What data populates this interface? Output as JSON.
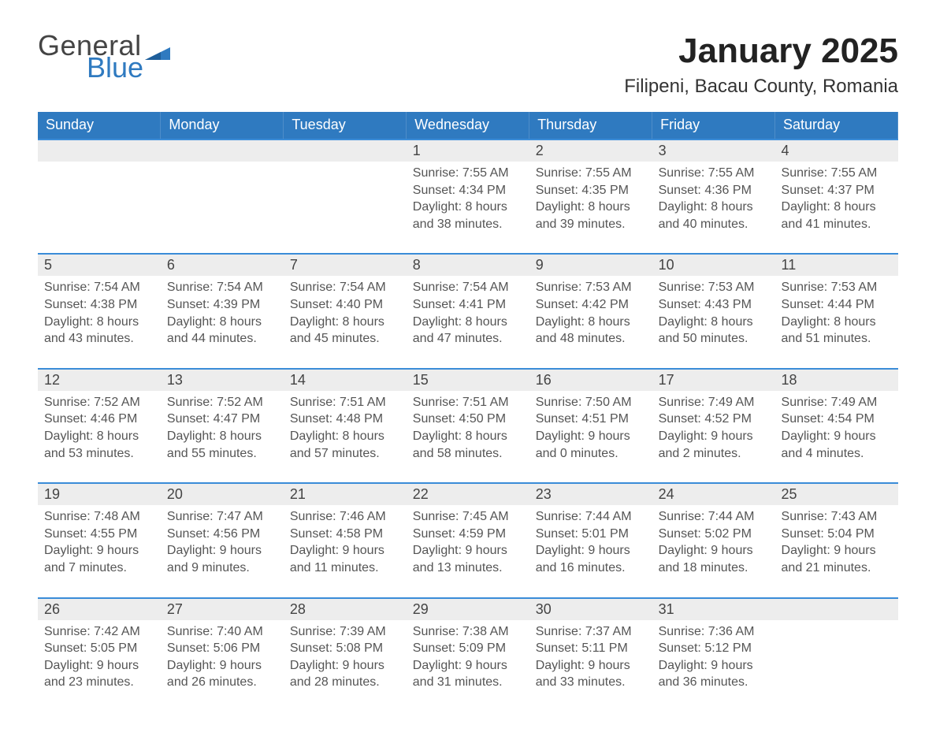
{
  "logo": {
    "word1": "General",
    "word2": "Blue"
  },
  "title": "January 2025",
  "subtitle": "Filipeni, Bacau County, Romania",
  "day_headers": [
    "Sunday",
    "Monday",
    "Tuesday",
    "Wednesday",
    "Thursday",
    "Friday",
    "Saturday"
  ],
  "colors": {
    "header_bg": "#2f7ac0",
    "row_divider": "#3a8cd8",
    "daynum_bg": "#ededed",
    "page_bg": "#ffffff",
    "text": "#3a3a3a"
  },
  "fonts": {
    "title_size_pt": 33,
    "subtitle_size_pt": 18,
    "header_size_pt": 14,
    "body_size_pt": 12
  },
  "weeks": [
    [
      null,
      null,
      null,
      {
        "num": "1",
        "sunrise": "7:55 AM",
        "sunset": "4:34 PM",
        "daylight_h": "8",
        "daylight_m": "38"
      },
      {
        "num": "2",
        "sunrise": "7:55 AM",
        "sunset": "4:35 PM",
        "daylight_h": "8",
        "daylight_m": "39"
      },
      {
        "num": "3",
        "sunrise": "7:55 AM",
        "sunset": "4:36 PM",
        "daylight_h": "8",
        "daylight_m": "40"
      },
      {
        "num": "4",
        "sunrise": "7:55 AM",
        "sunset": "4:37 PM",
        "daylight_h": "8",
        "daylight_m": "41"
      }
    ],
    [
      {
        "num": "5",
        "sunrise": "7:54 AM",
        "sunset": "4:38 PM",
        "daylight_h": "8",
        "daylight_m": "43"
      },
      {
        "num": "6",
        "sunrise": "7:54 AM",
        "sunset": "4:39 PM",
        "daylight_h": "8",
        "daylight_m": "44"
      },
      {
        "num": "7",
        "sunrise": "7:54 AM",
        "sunset": "4:40 PM",
        "daylight_h": "8",
        "daylight_m": "45"
      },
      {
        "num": "8",
        "sunrise": "7:54 AM",
        "sunset": "4:41 PM",
        "daylight_h": "8",
        "daylight_m": "47"
      },
      {
        "num": "9",
        "sunrise": "7:53 AM",
        "sunset": "4:42 PM",
        "daylight_h": "8",
        "daylight_m": "48"
      },
      {
        "num": "10",
        "sunrise": "7:53 AM",
        "sunset": "4:43 PM",
        "daylight_h": "8",
        "daylight_m": "50"
      },
      {
        "num": "11",
        "sunrise": "7:53 AM",
        "sunset": "4:44 PM",
        "daylight_h": "8",
        "daylight_m": "51"
      }
    ],
    [
      {
        "num": "12",
        "sunrise": "7:52 AM",
        "sunset": "4:46 PM",
        "daylight_h": "8",
        "daylight_m": "53"
      },
      {
        "num": "13",
        "sunrise": "7:52 AM",
        "sunset": "4:47 PM",
        "daylight_h": "8",
        "daylight_m": "55"
      },
      {
        "num": "14",
        "sunrise": "7:51 AM",
        "sunset": "4:48 PM",
        "daylight_h": "8",
        "daylight_m": "57"
      },
      {
        "num": "15",
        "sunrise": "7:51 AM",
        "sunset": "4:50 PM",
        "daylight_h": "8",
        "daylight_m": "58"
      },
      {
        "num": "16",
        "sunrise": "7:50 AM",
        "sunset": "4:51 PM",
        "daylight_h": "9",
        "daylight_m": "0"
      },
      {
        "num": "17",
        "sunrise": "7:49 AM",
        "sunset": "4:52 PM",
        "daylight_h": "9",
        "daylight_m": "2"
      },
      {
        "num": "18",
        "sunrise": "7:49 AM",
        "sunset": "4:54 PM",
        "daylight_h": "9",
        "daylight_m": "4"
      }
    ],
    [
      {
        "num": "19",
        "sunrise": "7:48 AM",
        "sunset": "4:55 PM",
        "daylight_h": "9",
        "daylight_m": "7"
      },
      {
        "num": "20",
        "sunrise": "7:47 AM",
        "sunset": "4:56 PM",
        "daylight_h": "9",
        "daylight_m": "9"
      },
      {
        "num": "21",
        "sunrise": "7:46 AM",
        "sunset": "4:58 PM",
        "daylight_h": "9",
        "daylight_m": "11"
      },
      {
        "num": "22",
        "sunrise": "7:45 AM",
        "sunset": "4:59 PM",
        "daylight_h": "9",
        "daylight_m": "13"
      },
      {
        "num": "23",
        "sunrise": "7:44 AM",
        "sunset": "5:01 PM",
        "daylight_h": "9",
        "daylight_m": "16"
      },
      {
        "num": "24",
        "sunrise": "7:44 AM",
        "sunset": "5:02 PM",
        "daylight_h": "9",
        "daylight_m": "18"
      },
      {
        "num": "25",
        "sunrise": "7:43 AM",
        "sunset": "5:04 PM",
        "daylight_h": "9",
        "daylight_m": "21"
      }
    ],
    [
      {
        "num": "26",
        "sunrise": "7:42 AM",
        "sunset": "5:05 PM",
        "daylight_h": "9",
        "daylight_m": "23"
      },
      {
        "num": "27",
        "sunrise": "7:40 AM",
        "sunset": "5:06 PM",
        "daylight_h": "9",
        "daylight_m": "26"
      },
      {
        "num": "28",
        "sunrise": "7:39 AM",
        "sunset": "5:08 PM",
        "daylight_h": "9",
        "daylight_m": "28"
      },
      {
        "num": "29",
        "sunrise": "7:38 AM",
        "sunset": "5:09 PM",
        "daylight_h": "9",
        "daylight_m": "31"
      },
      {
        "num": "30",
        "sunrise": "7:37 AM",
        "sunset": "5:11 PM",
        "daylight_h": "9",
        "daylight_m": "33"
      },
      {
        "num": "31",
        "sunrise": "7:36 AM",
        "sunset": "5:12 PM",
        "daylight_h": "9",
        "daylight_m": "36"
      },
      null
    ]
  ],
  "labels": {
    "sunrise": "Sunrise: ",
    "sunset": "Sunset: ",
    "daylight1": "Daylight: ",
    "hours": " hours",
    "and": "and ",
    "minutes": " minutes."
  }
}
